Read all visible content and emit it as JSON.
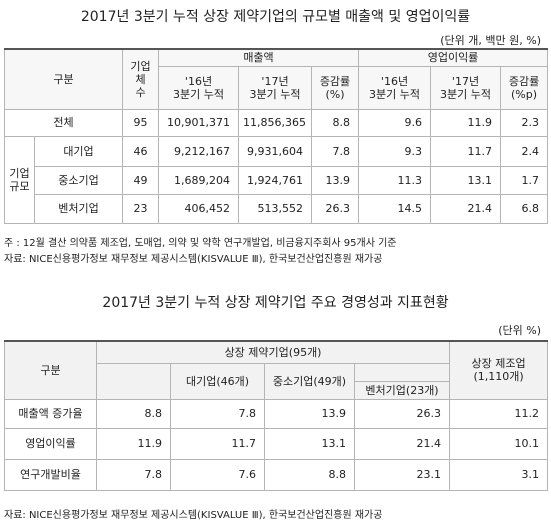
{
  "table1": {
    "title": "2017년 3분기 누적 상장 제약기업의 규모별 매출액 및 영업이익률",
    "unit": "(단위 개, 백만 원, %)",
    "header": {
      "category": "구분",
      "count": "기업체\n수",
      "sales": "매출액",
      "op_margin": "영업이익률",
      "sales_cols": [
        "'16년\n3분기 누적",
        "'17년\n3분기 누적",
        "증감률\n(%)"
      ],
      "margin_cols": [
        "'16년\n3분기 누적",
        "'17년\n3분기 누적",
        "증감률\n(%p)"
      ]
    },
    "group": "기업\n규모",
    "rows": [
      {
        "label": "전체",
        "cells": [
          "95",
          "10,901,371",
          "11,856,365",
          "8.8",
          "9.6",
          "11.9",
          "2.3"
        ]
      },
      {
        "label": "대기업",
        "cells": [
          "46",
          "9,212,167",
          "9,931,604",
          "7.8",
          "9.3",
          "11.7",
          "2.4"
        ]
      },
      {
        "label": "중소기업",
        "cells": [
          "49",
          "1,689,204",
          "1,924,761",
          "13.9",
          "11.3",
          "13.1",
          "1.7"
        ]
      },
      {
        "label": "벤처기업",
        "cells": [
          "23",
          "406,452",
          "513,552",
          "26.3",
          "14.5",
          "21.4",
          "6.8"
        ]
      }
    ],
    "notes": [
      "주 : 12월 결산 의약품 제조업, 도매업, 의약 및 약학 연구개발업, 비금융지주회사 95개사 기준",
      "자료: NICE신용평가정보 재무정보 제공시스템(KISVALUE Ⅲ), 한국보건산업진흥원 재가공"
    ]
  },
  "table2": {
    "title": "2017년 3분기 누적 상장 제약기업 주요 경영성과 지표현황",
    "unit": "(단위 %)",
    "header": {
      "category": "구분",
      "pharma": "상장 제약기업(95개)",
      "large": "대기업(46개)",
      "mid": "중소기업(49개)",
      "venture": "벤처기업(23개)",
      "manufacturing": "상장 제조업\n(1,110개)"
    },
    "rows": [
      {
        "label": "매출액 증가율",
        "cells": [
          "8.8",
          "7.8",
          "13.9",
          "26.3",
          "11.2"
        ]
      },
      {
        "label": "영업이익률",
        "cells": [
          "11.9",
          "11.7",
          "13.1",
          "21.4",
          "10.1"
        ]
      },
      {
        "label": "연구개발비율",
        "cells": [
          "7.8",
          "7.6",
          "8.8",
          "23.1",
          "3.1"
        ]
      }
    ],
    "source": "자료: NICE신용평가정보 재무정보 제공시스템(KISVALUE Ⅲ), 한국보건산업진흥원 재가공"
  }
}
